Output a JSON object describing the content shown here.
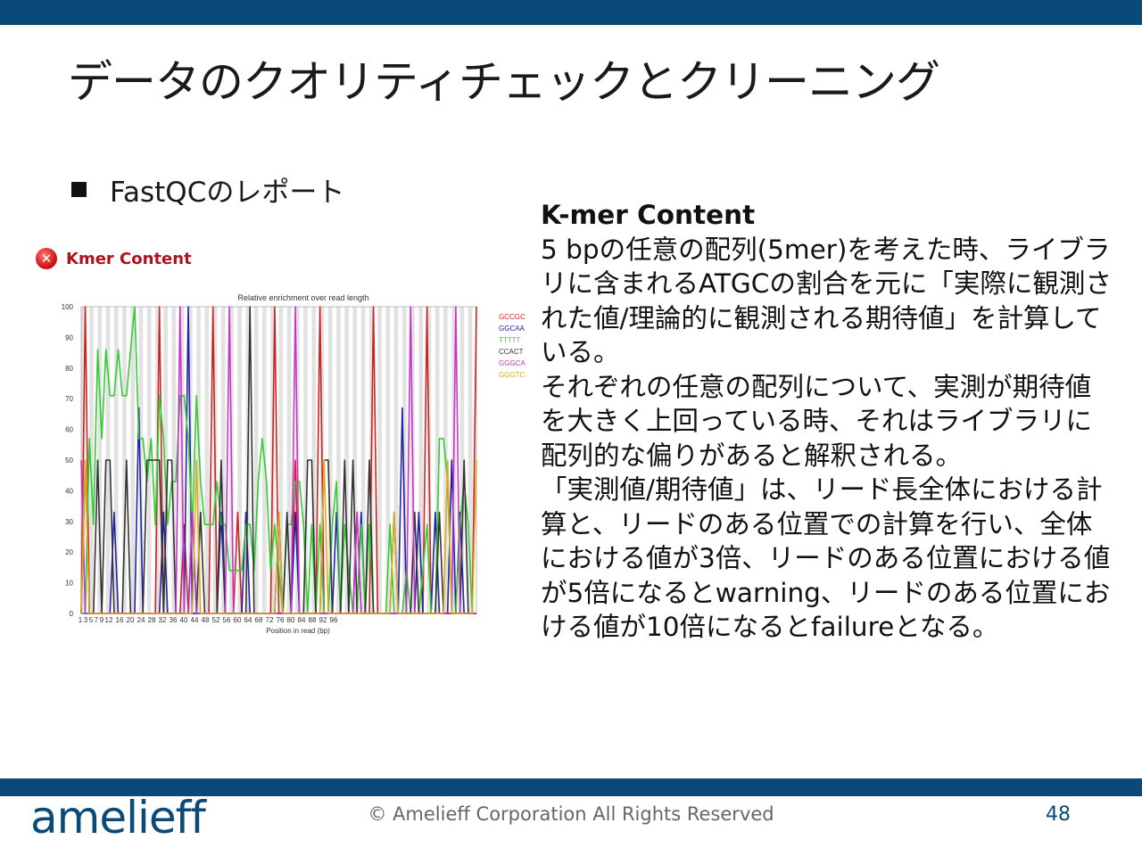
{
  "slide": {
    "title": "データのクオリティチェックとクリーニング",
    "bullet": "FastQCのレポート"
  },
  "kmer_panel": {
    "title": "Kmer Content",
    "status_icon": "error-cross-icon",
    "status_color": "#cc1f1f"
  },
  "info": {
    "heading": "K-mer Content",
    "paragraph1": "5 bpの任意の配列(5mer)を考えた時、ライブラリに含まれるATGCの割合を元に「実際に観測された値/理論的に観測される期待値」を計算している。",
    "paragraph2": "それぞれの任意の配列について、実測が期待値を大きく上回っている時、それはライブラリに配列的な偏りがあると解釈される。",
    "paragraph3": "「実測値/期待値」は、リード長全体における計算と、リードのある位置での計算を行い、全体における値が3倍、リードのある位置における値が5倍になるとwarning、リードのある位置における値が10倍になるとfailureとなる。"
  },
  "footer": {
    "logo": "amelieff",
    "copyright": "© Amelieff Corporation All Rights Reserved",
    "page_number": "48"
  },
  "chart_data": {
    "type": "line",
    "title": "Relative enrichment over read length",
    "xlabel": "Position in read (bp)",
    "ylabel": "",
    "ylim": [
      0,
      100
    ],
    "yticks": [
      0,
      10,
      20,
      30,
      40,
      50,
      60,
      70,
      80,
      90,
      100
    ],
    "xtick_labels": [
      "1",
      "3",
      "5",
      "7",
      "9",
      "12",
      "16",
      "20",
      "24",
      "28",
      "32",
      "36",
      "40",
      "44",
      "48",
      "52",
      "56",
      "60",
      "64",
      "68",
      "72",
      "76",
      "80",
      "84",
      "88",
      "92",
      "96"
    ],
    "grid": "alternating vertical stripes",
    "legend": "top-right",
    "series": [
      {
        "name": "GCCGC",
        "color": "#cc2222",
        "values": [
          0,
          100,
          0,
          0,
          0,
          0,
          0,
          0,
          0,
          0,
          0,
          0,
          0,
          0,
          0,
          0,
          0,
          0,
          0,
          100,
          0,
          0,
          0,
          0,
          0,
          29,
          0,
          0,
          0,
          0,
          0,
          0,
          100,
          0,
          0,
          0,
          0,
          0,
          33,
          0,
          0,
          0,
          0,
          0,
          0,
          0,
          0,
          100,
          0,
          0,
          0,
          0,
          50,
          0,
          0,
          0,
          0,
          0,
          100,
          0,
          0,
          0,
          0,
          0,
          0,
          0,
          0,
          33,
          0,
          0,
          0,
          100,
          0,
          0,
          0,
          0,
          0,
          0,
          0,
          0,
          0,
          0,
          0,
          0,
          100,
          0,
          0,
          0,
          0,
          0,
          0,
          0,
          0,
          0,
          0,
          0,
          100
        ]
      },
      {
        "name": "GGCAA",
        "color": "#2222aa",
        "values": [
          0,
          0,
          0,
          0,
          0,
          0,
          0,
          0,
          33,
          0,
          0,
          0,
          0,
          0,
          67,
          0,
          0,
          0,
          0,
          0,
          33,
          0,
          0,
          0,
          0,
          0,
          100,
          0,
          0,
          0,
          0,
          0,
          0,
          0,
          33,
          0,
          0,
          0,
          0,
          0,
          33,
          0,
          0,
          0,
          0,
          0,
          0,
          0,
          33,
          0,
          0,
          0,
          33,
          0,
          0,
          0,
          0,
          0,
          0,
          0,
          0,
          0,
          33,
          0,
          0,
          0,
          0,
          0,
          33,
          0,
          0,
          0,
          0,
          0,
          0,
          0,
          0,
          0,
          67,
          0,
          0,
          0,
          33,
          0,
          0,
          0,
          33,
          0,
          0,
          0,
          50,
          0,
          33,
          0,
          0,
          0,
          0
        ]
      },
      {
        "name": "TTTTT",
        "color": "#33cc33",
        "values": [
          0,
          0,
          57,
          29,
          86,
          57,
          86,
          71,
          71,
          86,
          71,
          71,
          86,
          100,
          57,
          57,
          43,
          57,
          29,
          71,
          57,
          29,
          43,
          43,
          71,
          71,
          57,
          29,
          71,
          43,
          29,
          29,
          29,
          43,
          29,
          29,
          14,
          14,
          14,
          14,
          29,
          29,
          14,
          43,
          57,
          43,
          14,
          29,
          14,
          0,
          29,
          29,
          43,
          43,
          29,
          0,
          29,
          0,
          29,
          0,
          0,
          29,
          43,
          0,
          29,
          14,
          0,
          0,
          29,
          0,
          29,
          0,
          0,
          0,
          0,
          29,
          0,
          0,
          0,
          14,
          0,
          0,
          0,
          14,
          29,
          0,
          0,
          57,
          57,
          43,
          0,
          0,
          29,
          43,
          29,
          0,
          0
        ]
      },
      {
        "name": "CCACT",
        "color": "#333333",
        "values": [
          0,
          50,
          0,
          0,
          50,
          0,
          50,
          50,
          0,
          0,
          0,
          50,
          0,
          0,
          0,
          0,
          50,
          50,
          50,
          50,
          0,
          50,
          50,
          0,
          0,
          0,
          0,
          33,
          0,
          33,
          0,
          0,
          0,
          0,
          50,
          0,
          0,
          0,
          0,
          0,
          0,
          100,
          0,
          0,
          0,
          0,
          0,
          0,
          0,
          0,
          33,
          0,
          0,
          0,
          0,
          50,
          50,
          0,
          0,
          50,
          50,
          0,
          0,
          0,
          50,
          0,
          50,
          0,
          0,
          0,
          50,
          0,
          0,
          0,
          0,
          0,
          33,
          0,
          0,
          0,
          0,
          33,
          0,
          0,
          0,
          0,
          0,
          33,
          0,
          0,
          0,
          0,
          0,
          50,
          0,
          0,
          0
        ]
      },
      {
        "name": "GGGCA",
        "color": "#cc33cc",
        "values": [
          50,
          0,
          0,
          0,
          0,
          0,
          0,
          0,
          0,
          0,
          0,
          0,
          0,
          0,
          0,
          0,
          0,
          0,
          0,
          0,
          0,
          0,
          0,
          0,
          100,
          0,
          0,
          33,
          0,
          0,
          0,
          0,
          0,
          0,
          0,
          0,
          100,
          0,
          0,
          0,
          0,
          0,
          0,
          0,
          0,
          0,
          0,
          0,
          0,
          0,
          0,
          0,
          100,
          0,
          0,
          0,
          0,
          0,
          0,
          0,
          0,
          0,
          0,
          0,
          0,
          0,
          0,
          33,
          0,
          0,
          0,
          0,
          0,
          0,
          0,
          0,
          0,
          0,
          0,
          0,
          100,
          0,
          0,
          0,
          0,
          0,
          0,
          0,
          0,
          0,
          0,
          100,
          0,
          0,
          0,
          0,
          0
        ]
      },
      {
        "name": "GGGTC",
        "color": "#ddaa22",
        "values": [
          0,
          50,
          0,
          0,
          0,
          0,
          0,
          0,
          0,
          0,
          0,
          0,
          0,
          0,
          0,
          0,
          0,
          0,
          0,
          0,
          0,
          0,
          0,
          0,
          0,
          0,
          0,
          0,
          50,
          0,
          0,
          0,
          0,
          0,
          0,
          0,
          0,
          0,
          0,
          0,
          0,
          0,
          0,
          0,
          0,
          0,
          0,
          0,
          33,
          0,
          0,
          0,
          0,
          0,
          0,
          0,
          0,
          0,
          0,
          50,
          0,
          0,
          0,
          0,
          0,
          0,
          0,
          0,
          0,
          0,
          0,
          0,
          0,
          0,
          0,
          0,
          33,
          0,
          0,
          0,
          0,
          0,
          0,
          0,
          0,
          0,
          0,
          0,
          0,
          50,
          0,
          0,
          0,
          0,
          0,
          0,
          50
        ]
      }
    ]
  }
}
